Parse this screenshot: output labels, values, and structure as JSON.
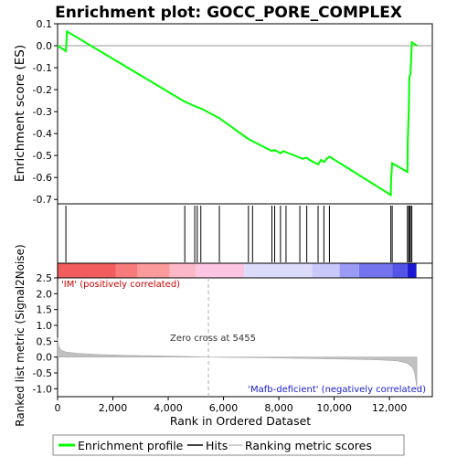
{
  "chart_data": {
    "type": "line",
    "title": "Enrichment plot: GOCC_PORE_COMPLEX",
    "top_panel": {
      "ylabel": "Enrichment score (ES)",
      "ylim": [
        -0.72,
        0.1
      ],
      "yticks": [
        0.1,
        0.0,
        -0.1,
        -0.2,
        -0.3,
        -0.4,
        -0.5,
        -0.6,
        -0.7
      ],
      "ytick_labels": [
        "0.1",
        "0.0",
        "-0.1",
        "-0.2",
        "-0.3",
        "-0.4",
        "-0.5",
        "-0.6",
        "-0.7"
      ],
      "line_color": "#00ff00",
      "zero_line_color": "#999999",
      "series": [
        {
          "x": [
            0,
            300,
            340,
            4600,
            4700,
            4960,
            5050,
            5180,
            5850,
            6900,
            7050,
            7750,
            7850,
            8060,
            8160,
            8260,
            8760,
            8860,
            9010,
            9110,
            9420,
            9530,
            9630,
            9730,
            9830,
            12050,
            12060,
            12100,
            12650,
            12660,
            12700,
            12720,
            12760,
            12810,
            13000
          ],
          "y": [
            0.0,
            -0.025,
            0.065,
            -0.255,
            -0.26,
            -0.275,
            -0.28,
            -0.285,
            -0.33,
            -0.425,
            -0.435,
            -0.48,
            -0.475,
            -0.49,
            -0.48,
            -0.485,
            -0.51,
            -0.515,
            -0.51,
            -0.52,
            -0.54,
            -0.52,
            -0.53,
            -0.515,
            -0.505,
            -0.68,
            -0.61,
            -0.535,
            -0.575,
            -0.44,
            -0.29,
            -0.14,
            -0.13,
            0.015,
            0.0
          ]
        }
      ]
    },
    "hits_panel": {
      "hit_positions": [
        300,
        4600,
        4960,
        5050,
        5180,
        5850,
        6900,
        7050,
        7750,
        7850,
        8060,
        8260,
        8760,
        9010,
        9420,
        9630,
        9830,
        12050,
        12100,
        12650,
        12700,
        12720,
        12760,
        12810
      ]
    },
    "gradient_bar": {
      "segments": [
        {
          "from": 0,
          "to": 2100,
          "color": "#f25c5c"
        },
        {
          "from": 2100,
          "to": 2900,
          "color": "#f77b7b"
        },
        {
          "from": 2900,
          "to": 4050,
          "color": "#fb9a9a"
        },
        {
          "from": 4050,
          "to": 5000,
          "color": "#fdb8c8"
        },
        {
          "from": 5000,
          "to": 6750,
          "color": "#fcc6e2"
        },
        {
          "from": 6750,
          "to": 9200,
          "color": "#dcdcfa"
        },
        {
          "from": 9200,
          "to": 10200,
          "color": "#c8c8fa"
        },
        {
          "from": 10200,
          "to": 10900,
          "color": "#9b9bf5"
        },
        {
          "from": 10900,
          "to": 12100,
          "color": "#7474ee"
        },
        {
          "from": 12100,
          "to": 12650,
          "color": "#5454e6"
        },
        {
          "from": 12650,
          "to": 12980,
          "color": "#1a1ad2"
        }
      ]
    },
    "bottom_panel": {
      "ylabel": "Ranked list metric (Signal2Noise)",
      "xlabel": "Rank in Ordered Dataset",
      "ylim": [
        -1.25,
        2.5
      ],
      "yticks": [
        2.5,
        2.0,
        1.5,
        1.0,
        0.5,
        0.0,
        -0.5,
        -1.0
      ],
      "ytick_labels": [
        "2.5",
        "2.0",
        "1.5",
        "1.0",
        "0.5",
        "0.0",
        "-0.5",
        "-1.0"
      ],
      "xlim": [
        0,
        13550
      ],
      "xticks": [
        0,
        2000,
        4000,
        6000,
        8000,
        10000,
        12000
      ],
      "xtick_labels": [
        "0",
        "2,000",
        "4,000",
        "6,000",
        "8,000",
        "10,000",
        "12,000"
      ],
      "metric_curve": {
        "x": [
          0,
          40,
          120,
          300,
          700,
          1500,
          2500,
          4000,
          5000,
          5455,
          6000,
          7500,
          9000,
          10500,
          11500,
          12300,
          12650,
          12820,
          12900,
          12960,
          12990
        ],
        "y": [
          0.62,
          0.35,
          0.22,
          0.16,
          0.12,
          0.08,
          0.055,
          0.03,
          0.012,
          0.0,
          -0.01,
          -0.025,
          -0.045,
          -0.065,
          -0.085,
          -0.12,
          -0.2,
          -0.32,
          -0.45,
          -0.75,
          -1.0
        ]
      },
      "zero_cross_label": "Zero cross at 5455",
      "zero_cross_x": 5455,
      "positive_label": "'IM' (positively correlated)",
      "negative_label": "'Mafb-deficient' (negatively correlated)"
    },
    "legend": {
      "items": [
        {
          "label": "Enrichment profile",
          "color": "#00ff00"
        },
        {
          "label": "Hits",
          "color": "#000000"
        },
        {
          "label": "Ranking metric scores",
          "color": "#c0c0c0"
        }
      ]
    }
  }
}
